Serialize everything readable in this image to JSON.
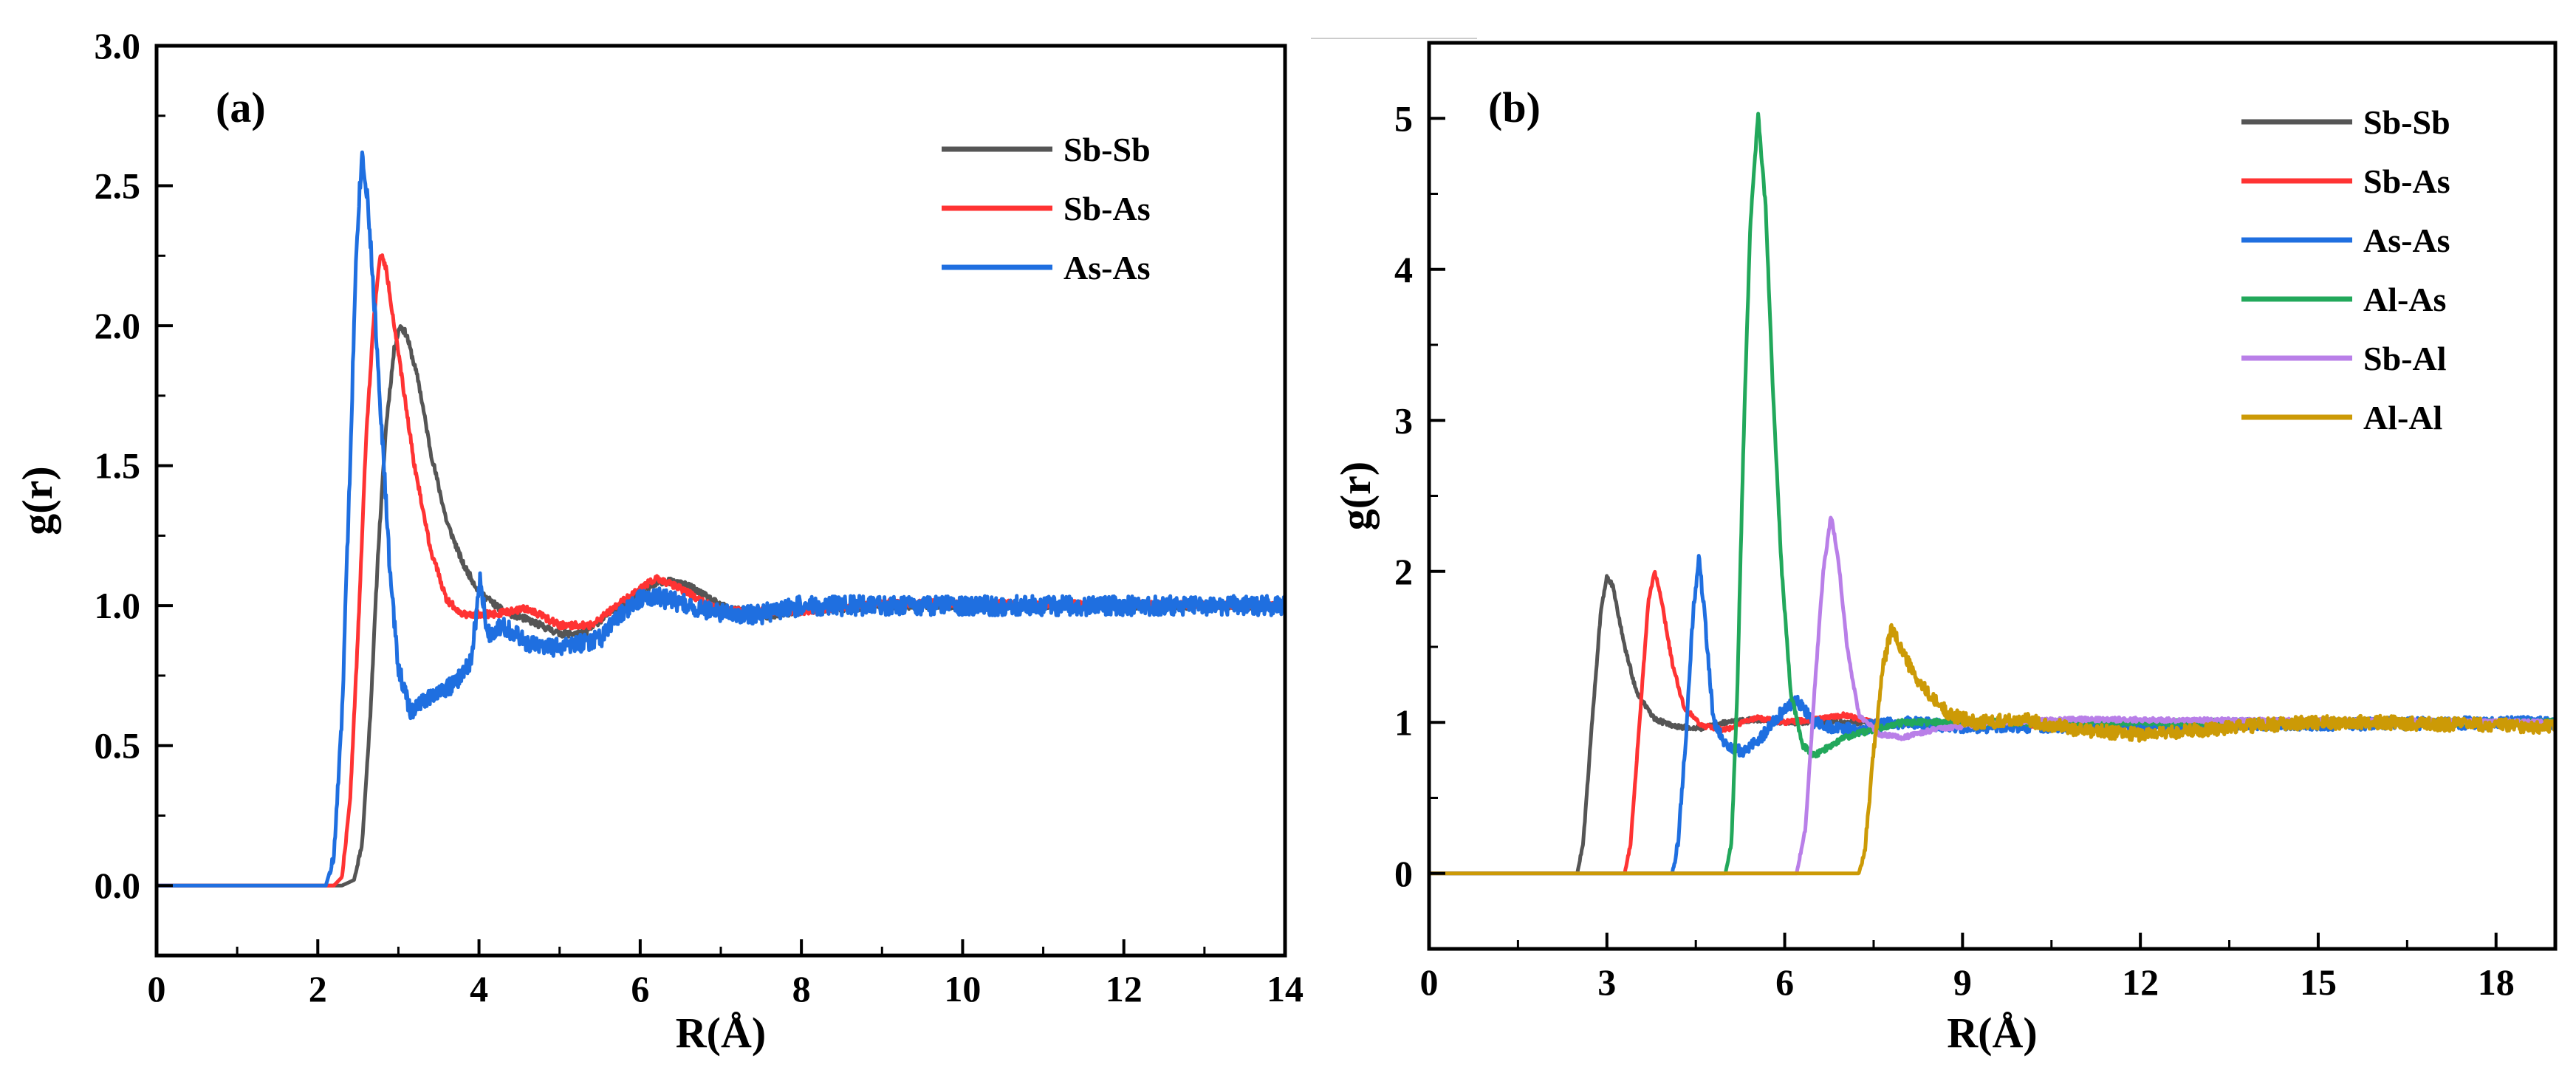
{
  "chart_data": [
    {
      "type": "line",
      "panel_label": "(a)",
      "xlabel": "R(Å)",
      "ylabel": "g(r)",
      "xlim": [
        0,
        14
      ],
      "ylim": [
        -0.25,
        3.0
      ],
      "xticks": [
        0,
        2,
        4,
        6,
        8,
        10,
        12,
        14
      ],
      "yticks": [
        0.0,
        0.5,
        1.0,
        1.5,
        2.0,
        2.5,
        3.0
      ],
      "xtick_labels": [
        "0",
        "2",
        "4",
        "6",
        "8",
        "10",
        "12",
        "14"
      ],
      "ytick_labels": [
        "0.0",
        "0.5",
        "1.0",
        "1.5",
        "2.0",
        "2.5",
        "3.0"
      ],
      "legend_position": "top-right",
      "series": [
        {
          "name": "Sb-Sb",
          "color": "#555555",
          "noise": 0.012,
          "seed": 11,
          "points": [
            [
              0,
              0
            ],
            [
              2.3,
              0
            ],
            [
              2.45,
              0.02
            ],
            [
              2.55,
              0.15
            ],
            [
              2.65,
              0.6
            ],
            [
              2.75,
              1.2
            ],
            [
              2.85,
              1.65
            ],
            [
              2.95,
              1.92
            ],
            [
              3.02,
              2.0
            ],
            [
              3.1,
              1.97
            ],
            [
              3.25,
              1.8
            ],
            [
              3.4,
              1.55
            ],
            [
              3.6,
              1.3
            ],
            [
              3.8,
              1.15
            ],
            [
              4.0,
              1.05
            ],
            [
              4.3,
              0.98
            ],
            [
              4.6,
              0.95
            ],
            [
              5.0,
              0.9
            ],
            [
              5.3,
              0.9
            ],
            [
              5.6,
              0.97
            ],
            [
              6.0,
              1.05
            ],
            [
              6.3,
              1.09
            ],
            [
              6.6,
              1.07
            ],
            [
              7.0,
              1.0
            ],
            [
              7.5,
              0.96
            ],
            [
              8.0,
              0.98
            ],
            [
              9.0,
              1.0
            ],
            [
              14,
              1.0
            ]
          ]
        },
        {
          "name": "Sb-As",
          "color": "#ff3333",
          "noise": 0.012,
          "seed": 22,
          "points": [
            [
              0,
              0
            ],
            [
              2.2,
              0
            ],
            [
              2.3,
              0.03
            ],
            [
              2.4,
              0.3
            ],
            [
              2.5,
              0.9
            ],
            [
              2.6,
              1.6
            ],
            [
              2.7,
              2.05
            ],
            [
              2.78,
              2.26
            ],
            [
              2.85,
              2.2
            ],
            [
              3.0,
              1.9
            ],
            [
              3.2,
              1.5
            ],
            [
              3.4,
              1.2
            ],
            [
              3.6,
              1.02
            ],
            [
              3.8,
              0.97
            ],
            [
              4.2,
              0.97
            ],
            [
              4.6,
              0.99
            ],
            [
              5.0,
              0.93
            ],
            [
              5.4,
              0.93
            ],
            [
              5.8,
              1.02
            ],
            [
              6.2,
              1.1
            ],
            [
              6.5,
              1.06
            ],
            [
              7.0,
              0.98
            ],
            [
              8.0,
              0.98
            ],
            [
              9.0,
              1.01
            ],
            [
              14,
              1.0
            ]
          ]
        },
        {
          "name": "As-As",
          "color": "#1f6fe0",
          "noise": 0.035,
          "seed": 33,
          "points": [
            [
              0,
              0
            ],
            [
              2.1,
              0
            ],
            [
              2.2,
              0.1
            ],
            [
              2.3,
              0.6
            ],
            [
              2.4,
              1.5
            ],
            [
              2.48,
              2.3
            ],
            [
              2.55,
              2.62
            ],
            [
              2.62,
              2.45
            ],
            [
              2.75,
              1.85
            ],
            [
              2.9,
              1.1
            ],
            [
              3.0,
              0.78
            ],
            [
              3.15,
              0.62
            ],
            [
              3.4,
              0.68
            ],
            [
              3.7,
              0.72
            ],
            [
              3.9,
              0.8
            ],
            [
              4.02,
              1.1
            ],
            [
              4.1,
              0.9
            ],
            [
              4.3,
              0.93
            ],
            [
              4.6,
              0.86
            ],
            [
              5.0,
              0.85
            ],
            [
              5.5,
              0.88
            ],
            [
              5.8,
              0.98
            ],
            [
              6.1,
              1.04
            ],
            [
              6.6,
              1.0
            ],
            [
              7.0,
              0.97
            ],
            [
              7.5,
              0.97
            ],
            [
              8.0,
              1.0
            ],
            [
              9.0,
              1.0
            ],
            [
              14,
              1.0
            ]
          ]
        }
      ]
    },
    {
      "type": "line",
      "panel_label": "(b)",
      "xlabel": "R(Å)",
      "ylabel": "g(r)",
      "xlim": [
        0,
        19
      ],
      "ylim": [
        -0.5,
        5.5
      ],
      "xticks": [
        0,
        3,
        6,
        9,
        12,
        15,
        18
      ],
      "yticks": [
        0,
        1,
        2,
        3,
        4,
        5
      ],
      "xtick_labels": [
        "0",
        "3",
        "6",
        "9",
        "12",
        "15",
        "18"
      ],
      "ytick_labels": [
        "0",
        "1",
        "2",
        "3",
        "4",
        "5"
      ],
      "legend_position": "top-right",
      "series": [
        {
          "name": "Sb-Sb",
          "color": "#555555",
          "noise": 0.015,
          "seed": 44,
          "points": [
            [
              0,
              0
            ],
            [
              2.5,
              0
            ],
            [
              2.6,
              0.2
            ],
            [
              2.75,
              1.0
            ],
            [
              2.9,
              1.75
            ],
            [
              3.0,
              1.97
            ],
            [
              3.1,
              1.9
            ],
            [
              3.3,
              1.5
            ],
            [
              3.5,
              1.2
            ],
            [
              3.8,
              1.02
            ],
            [
              4.2,
              0.97
            ],
            [
              4.6,
              0.96
            ],
            [
              5.0,
              1.0
            ],
            [
              5.5,
              1.02
            ],
            [
              6.0,
              1.0
            ],
            [
              19,
              1.0
            ]
          ]
        },
        {
          "name": "Sb-As",
          "color": "#ff3333",
          "noise": 0.015,
          "seed": 55,
          "points": [
            [
              0,
              0
            ],
            [
              1.0,
              0
            ],
            [
              3.3,
              0
            ],
            [
              3.4,
              0.2
            ],
            [
              3.55,
              1.0
            ],
            [
              3.7,
              1.8
            ],
            [
              3.8,
              2.0
            ],
            [
              3.9,
              1.85
            ],
            [
              4.1,
              1.4
            ],
            [
              4.3,
              1.1
            ],
            [
              4.6,
              0.98
            ],
            [
              5.0,
              0.95
            ],
            [
              5.5,
              1.03
            ],
            [
              6.0,
              1.0
            ],
            [
              6.5,
              1.02
            ],
            [
              7.0,
              1.05
            ],
            [
              7.5,
              1.0
            ],
            [
              8.5,
              0.98
            ],
            [
              19,
              1.0
            ]
          ]
        },
        {
          "name": "As-As",
          "color": "#1f6fe0",
          "noise": 0.04,
          "seed": 66,
          "points": [
            [
              0,
              0
            ],
            [
              2.0,
              0
            ],
            [
              4.1,
              0
            ],
            [
              4.2,
              0.2
            ],
            [
              4.35,
              1.0
            ],
            [
              4.45,
              1.7
            ],
            [
              4.55,
              2.1
            ],
            [
              4.65,
              1.7
            ],
            [
              4.8,
              1.0
            ],
            [
              5.0,
              0.85
            ],
            [
              5.3,
              0.8
            ],
            [
              5.6,
              0.9
            ],
            [
              5.9,
              1.05
            ],
            [
              6.2,
              1.15
            ],
            [
              6.5,
              1.0
            ],
            [
              7.0,
              0.95
            ],
            [
              8.0,
              1.0
            ],
            [
              9.0,
              0.97
            ],
            [
              19,
              1.0
            ]
          ]
        },
        {
          "name": "Al-As",
          "color": "#22a85b",
          "noise": 0.02,
          "seed": 77,
          "points": [
            [
              0,
              0
            ],
            [
              3.0,
              0
            ],
            [
              5.0,
              0
            ],
            [
              5.1,
              0.2
            ],
            [
              5.2,
              1.2
            ],
            [
              5.3,
              2.8
            ],
            [
              5.42,
              4.3
            ],
            [
              5.55,
              5.03
            ],
            [
              5.68,
              4.4
            ],
            [
              5.8,
              3.2
            ],
            [
              5.95,
              2.0
            ],
            [
              6.1,
              1.2
            ],
            [
              6.3,
              0.85
            ],
            [
              6.5,
              0.78
            ],
            [
              7.0,
              0.9
            ],
            [
              7.5,
              0.95
            ],
            [
              8.0,
              1.0
            ],
            [
              19,
              1.0
            ]
          ]
        },
        {
          "name": "Sb-Al",
          "color": "#b97fe8",
          "noise": 0.015,
          "seed": 88,
          "points": [
            [
              0,
              0
            ],
            [
              5.0,
              0
            ],
            [
              6.2,
              0
            ],
            [
              6.35,
              0.3
            ],
            [
              6.5,
              1.2
            ],
            [
              6.65,
              2.0
            ],
            [
              6.78,
              2.37
            ],
            [
              6.9,
              2.1
            ],
            [
              7.05,
              1.5
            ],
            [
              7.25,
              1.05
            ],
            [
              7.6,
              0.92
            ],
            [
              8.0,
              0.9
            ],
            [
              8.5,
              0.95
            ],
            [
              9.5,
              1.0
            ],
            [
              11,
              1.02
            ],
            [
              19,
              1.0
            ]
          ]
        },
        {
          "name": "Al-Al",
          "color": "#cc9a06",
          "noise": 0.045,
          "seed": 99,
          "points": [
            [
              0,
              0
            ],
            [
              6.0,
              0
            ],
            [
              7.25,
              0
            ],
            [
              7.35,
              0.15
            ],
            [
              7.5,
              0.8
            ],
            [
              7.65,
              1.35
            ],
            [
              7.8,
              1.62
            ],
            [
              7.95,
              1.5
            ],
            [
              8.2,
              1.3
            ],
            [
              8.5,
              1.15
            ],
            [
              8.8,
              1.05
            ],
            [
              9.2,
              1.0
            ],
            [
              10,
              1.02
            ],
            [
              11,
              0.95
            ],
            [
              12,
              0.92
            ],
            [
              13,
              0.95
            ],
            [
              14,
              0.98
            ],
            [
              15,
              1.0
            ],
            [
              16,
              1.0
            ],
            [
              19,
              0.97
            ]
          ]
        }
      ]
    }
  ]
}
